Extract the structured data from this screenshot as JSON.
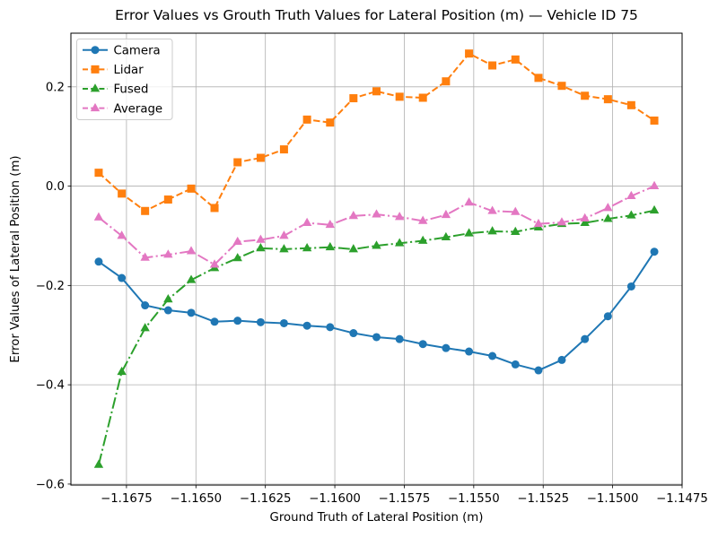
{
  "figure": {
    "background": "#ffffff",
    "grid_color": "#b0b0b0",
    "spine_color": "#000000",
    "legend_border_color": "#cccccc"
  },
  "chart_data": {
    "type": "line",
    "title": "Error Values vs Grouth Truth Values for Lateral Position (m) — Vehicle ID 75",
    "xlabel": "Ground Truth of Lateral Position (m)",
    "ylabel": "Error Values of Lateral Position (m)",
    "xlim": [
      -1.1695,
      -1.1475
    ],
    "ylim": [
      -0.602,
      0.308
    ],
    "grid": true,
    "legend_position": "upper left",
    "xticks": {
      "values": [
        -1.1675,
        -1.165,
        -1.1625,
        -1.16,
        -1.1575,
        -1.155,
        -1.1525,
        -1.15,
        -1.1475
      ],
      "labels": [
        "−1.1675",
        "−1.1650",
        "−1.1625",
        "−1.1600",
        "−1.1575",
        "−1.1550",
        "−1.1525",
        "−1.1500",
        "−1.1475"
      ]
    },
    "yticks": {
      "values": [
        -0.6,
        -0.4,
        -0.2,
        0.0,
        0.2
      ],
      "labels": [
        "−0.6",
        "−0.4",
        "−0.2",
        "0.0",
        "0.2"
      ]
    },
    "x": [
      -1.1685,
      -1.16767,
      -1.16683,
      -1.166,
      -1.16517,
      -1.16433,
      -1.1635,
      -1.16267,
      -1.16183,
      -1.161,
      -1.16017,
      -1.15933,
      -1.1585,
      -1.15767,
      -1.15683,
      -1.156,
      -1.15517,
      -1.15433,
      -1.1535,
      -1.15267,
      -1.15183,
      -1.151,
      -1.15017,
      -1.14933,
      -1.1485
    ],
    "series": [
      {
        "name": "Camera",
        "color": "#1f77b4",
        "line_style": "solid",
        "marker": "circle",
        "values": [
          -0.152,
          -0.185,
          -0.24,
          -0.25,
          -0.255,
          -0.273,
          -0.271,
          -0.274,
          -0.276,
          -0.281,
          -0.284,
          -0.296,
          -0.304,
          -0.308,
          -0.318,
          -0.326,
          -0.333,
          -0.342,
          -0.359,
          -0.371,
          -0.35,
          -0.308,
          -0.262,
          -0.202,
          -0.132
        ]
      },
      {
        "name": "Lidar",
        "color": "#ff7f0e",
        "line_style": "dashed",
        "marker": "square",
        "values": [
          0.027,
          -0.015,
          -0.05,
          -0.027,
          -0.005,
          -0.044,
          0.048,
          0.057,
          0.074,
          0.134,
          0.128,
          0.177,
          0.191,
          0.18,
          0.178,
          0.211,
          0.267,
          0.243,
          0.255,
          0.218,
          0.202,
          0.182,
          0.175,
          0.163,
          0.132
        ]
      },
      {
        "name": "Fused",
        "color": "#2ca02c",
        "line_style": "dashdot",
        "marker": "triangle",
        "values": [
          -0.561,
          -0.374,
          -0.286,
          -0.228,
          -0.189,
          -0.165,
          -0.145,
          -0.125,
          -0.127,
          -0.125,
          -0.123,
          -0.127,
          -0.12,
          -0.115,
          -0.11,
          -0.103,
          -0.095,
          -0.091,
          -0.092,
          -0.083,
          -0.076,
          -0.074,
          -0.066,
          -0.059,
          -0.049
        ]
      },
      {
        "name": "Average",
        "color": "#e377c2",
        "line_style": "dashdot",
        "marker": "triangle",
        "values": [
          -0.063,
          -0.1,
          -0.144,
          -0.138,
          -0.131,
          -0.158,
          -0.112,
          -0.108,
          -0.1,
          -0.074,
          -0.078,
          -0.06,
          -0.057,
          -0.062,
          -0.07,
          -0.058,
          -0.033,
          -0.05,
          -0.052,
          -0.076,
          -0.073,
          -0.065,
          -0.044,
          -0.02,
          0.0
        ]
      }
    ]
  }
}
